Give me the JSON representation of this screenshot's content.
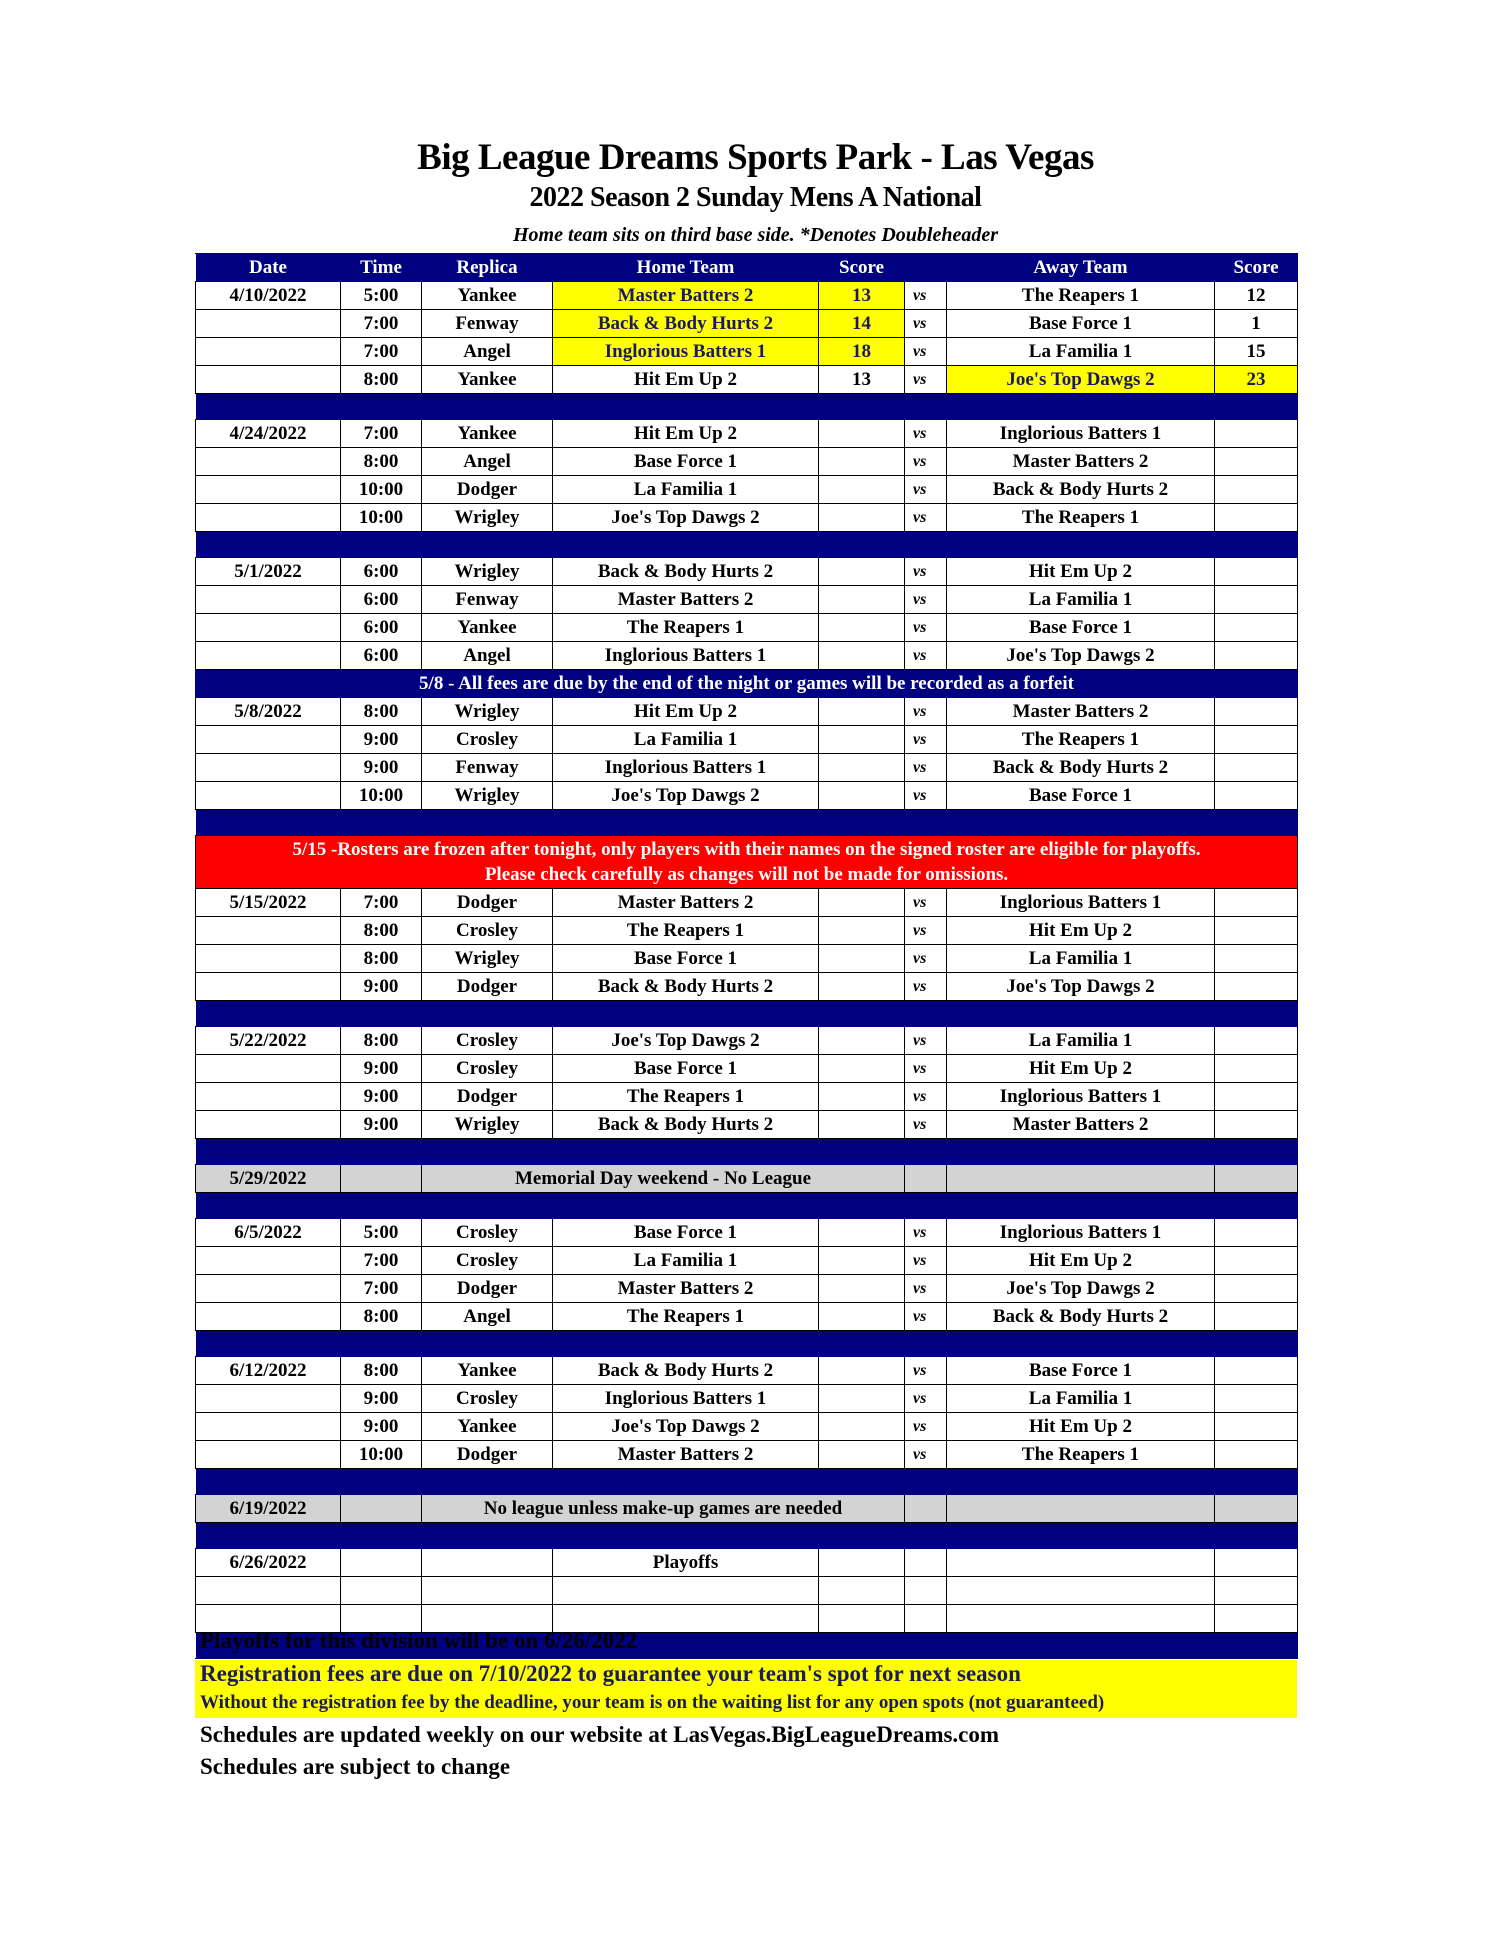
{
  "header": {
    "title": "Big League Dreams Sports Park - Las Vegas",
    "subtitle": "2022 Season 2 Sunday Mens A National",
    "note": "Home team sits on third base side.  *Denotes Doubleheader"
  },
  "columns": [
    "Date",
    "Time",
    "Replica",
    "Home Team",
    "Score",
    "",
    "Away Team",
    "Score"
  ],
  "vs_label": "vs",
  "colors": {
    "navy": "#000080",
    "highlight": "#ffff00",
    "alert": "#ff0000",
    "off_week": "#d3d3d3"
  },
  "rows": [
    {
      "type": "game",
      "date": "4/10/2022",
      "time": "5:00",
      "field": "Yankee",
      "home": "Master Batters 2",
      "hs": "13",
      "away": "The Reapers 1",
      "as": "12",
      "winner": "home"
    },
    {
      "type": "game",
      "date": "",
      "time": "7:00",
      "field": "Fenway",
      "home": "Back & Body Hurts 2",
      "hs": "14",
      "away": "Base Force 1",
      "as": "1",
      "winner": "home"
    },
    {
      "type": "game",
      "date": "",
      "time": "7:00",
      "field": "Angel",
      "home": "Inglorious Batters 1",
      "hs": "18",
      "away": "La Familia 1",
      "as": "15",
      "winner": "home"
    },
    {
      "type": "game",
      "date": "",
      "time": "8:00",
      "field": "Yankee",
      "home": "Hit Em Up 2",
      "hs": "13",
      "away": "Joe's Top Dawgs 2",
      "as": "23",
      "winner": "away"
    },
    {
      "type": "spacer"
    },
    {
      "type": "game",
      "date": "4/24/2022",
      "time": "7:00",
      "field": "Yankee",
      "home": "Hit Em Up 2",
      "hs": "",
      "away": "Inglorious Batters 1",
      "as": ""
    },
    {
      "type": "game",
      "date": "",
      "time": "8:00",
      "field": "Angel",
      "home": "Base Force 1",
      "hs": "",
      "away": "Master Batters 2",
      "as": ""
    },
    {
      "type": "game",
      "date": "",
      "time": "10:00",
      "field": "Dodger",
      "home": "La Familia 1",
      "hs": "",
      "away": "Back & Body Hurts 2",
      "as": ""
    },
    {
      "type": "game",
      "date": "",
      "time": "10:00",
      "field": "Wrigley",
      "home": "Joe's Top Dawgs 2",
      "hs": "",
      "away": "The Reapers 1",
      "as": ""
    },
    {
      "type": "spacer"
    },
    {
      "type": "game",
      "date": "5/1/2022",
      "time": "6:00",
      "field": "Wrigley",
      "home": "Back & Body Hurts 2",
      "hs": "",
      "away": "Hit Em Up 2",
      "as": ""
    },
    {
      "type": "game",
      "date": "",
      "time": "6:00",
      "field": "Fenway",
      "home": "Master Batters 2",
      "hs": "",
      "away": "La Familia 1",
      "as": ""
    },
    {
      "type": "game",
      "date": "",
      "time": "6:00",
      "field": "Yankee",
      "home": "The Reapers 1",
      "hs": "",
      "away": "Base Force 1",
      "as": ""
    },
    {
      "type": "game",
      "date": "",
      "time": "6:00",
      "field": "Angel",
      "home": "Inglorious Batters 1",
      "hs": "",
      "away": "Joe's Top Dawgs 2",
      "as": ""
    },
    {
      "type": "notice",
      "text": "5/8 - All fees are due by the end of the night or games will be recorded as a forfeit"
    },
    {
      "type": "game",
      "date": "5/8/2022",
      "time": "8:00",
      "field": "Wrigley",
      "home": "Hit Em Up 2",
      "hs": "",
      "away": "Master Batters 2",
      "as": ""
    },
    {
      "type": "game",
      "date": "",
      "time": "9:00",
      "field": "Crosley",
      "home": "La Familia 1",
      "hs": "",
      "away": "The Reapers 1",
      "as": ""
    },
    {
      "type": "game",
      "date": "",
      "time": "9:00",
      "field": "Fenway",
      "home": "Inglorious Batters 1",
      "hs": "",
      "away": "Back & Body Hurts 2",
      "as": ""
    },
    {
      "type": "game",
      "date": "",
      "time": "10:00",
      "field": "Wrigley",
      "home": "Joe's Top Dawgs 2",
      "hs": "",
      "away": "Base Force 1",
      "as": ""
    },
    {
      "type": "spacer"
    },
    {
      "type": "red",
      "line1": "5/15 -Rosters are frozen after tonight, only players with their names on the signed roster are eligible for playoffs.",
      "line2": "Please check carefully as changes will not be made for omissions."
    },
    {
      "type": "game",
      "date": "5/15/2022",
      "time": "7:00",
      "field": "Dodger",
      "home": "Master Batters 2",
      "hs": "",
      "away": "Inglorious Batters 1",
      "as": ""
    },
    {
      "type": "game",
      "date": "",
      "time": "8:00",
      "field": "Crosley",
      "home": "The Reapers 1",
      "hs": "",
      "away": "Hit Em Up 2",
      "as": ""
    },
    {
      "type": "game",
      "date": "",
      "time": "8:00",
      "field": "Wrigley",
      "home": "Base Force 1",
      "hs": "",
      "away": "La Familia 1",
      "as": ""
    },
    {
      "type": "game",
      "date": "",
      "time": "9:00",
      "field": "Dodger",
      "home": "Back & Body Hurts 2",
      "hs": "",
      "away": "Joe's Top Dawgs 2",
      "as": ""
    },
    {
      "type": "spacer"
    },
    {
      "type": "game",
      "date": "5/22/2022",
      "time": "8:00",
      "field": "Crosley",
      "home": "Joe's Top Dawgs 2",
      "hs": "",
      "away": "La Familia 1",
      "as": ""
    },
    {
      "type": "game",
      "date": "",
      "time": "9:00",
      "field": "Crosley",
      "home": "Base Force 1",
      "hs": "",
      "away": "Hit Em Up 2",
      "as": ""
    },
    {
      "type": "game",
      "date": "",
      "time": "9:00",
      "field": "Dodger",
      "home": "The Reapers 1",
      "hs": "",
      "away": "Inglorious Batters 1",
      "as": ""
    },
    {
      "type": "game",
      "date": "",
      "time": "9:00",
      "field": "Wrigley",
      "home": "Back & Body Hurts 2",
      "hs": "",
      "away": "Master Batters 2",
      "as": ""
    },
    {
      "type": "spacer"
    },
    {
      "type": "off",
      "date": "5/29/2022",
      "text": "Memorial Day weekend - No League"
    },
    {
      "type": "spacer"
    },
    {
      "type": "game",
      "date": "6/5/2022",
      "time": "5:00",
      "field": "Crosley",
      "home": "Base Force 1",
      "hs": "",
      "away": "Inglorious Batters 1",
      "as": ""
    },
    {
      "type": "game",
      "date": "",
      "time": "7:00",
      "field": "Crosley",
      "home": "La Familia 1",
      "hs": "",
      "away": "Hit Em Up 2",
      "as": ""
    },
    {
      "type": "game",
      "date": "",
      "time": "7:00",
      "field": "Dodger",
      "home": "Master Batters 2",
      "hs": "",
      "away": "Joe's Top Dawgs 2",
      "as": ""
    },
    {
      "type": "game",
      "date": "",
      "time": "8:00",
      "field": "Angel",
      "home": "The Reapers 1",
      "hs": "",
      "away": "Back & Body Hurts 2",
      "as": ""
    },
    {
      "type": "spacer"
    },
    {
      "type": "game",
      "date": "6/12/2022",
      "time": "8:00",
      "field": "Yankee",
      "home": "Back & Body Hurts 2",
      "hs": "",
      "away": "Base Force 1",
      "as": ""
    },
    {
      "type": "game",
      "date": "",
      "time": "9:00",
      "field": "Crosley",
      "home": "Inglorious Batters 1",
      "hs": "",
      "away": "La Familia 1",
      "as": ""
    },
    {
      "type": "game",
      "date": "",
      "time": "9:00",
      "field": "Yankee",
      "home": "Joe's Top Dawgs 2",
      "hs": "",
      "away": "Hit Em Up 2",
      "as": ""
    },
    {
      "type": "game",
      "date": "",
      "time": "10:00",
      "field": "Dodger",
      "home": "Master Batters 2",
      "hs": "",
      "away": "The Reapers 1",
      "as": ""
    },
    {
      "type": "spacer"
    },
    {
      "type": "off",
      "date": "6/19/2022",
      "text": "No league unless make-up games are needed"
    },
    {
      "type": "spacer"
    },
    {
      "type": "playoffs",
      "date": "6/26/2022",
      "text": "Playoffs"
    },
    {
      "type": "blank"
    },
    {
      "type": "blank"
    },
    {
      "type": "spacer"
    }
  ],
  "footer": {
    "playoffs": "Playoffs for this division will be on 6/26/2022",
    "registration": "Registration fees are due on 7/10/2022 to guarantee your team's spot for next season",
    "waiting": "Without the registration fee by the deadline, your team is on the waiting list for any open spots (not guaranteed)",
    "website": "Schedules are updated weekly on our website at LasVegas.BigLeagueDreams.com",
    "change": "Schedules are subject to change"
  }
}
